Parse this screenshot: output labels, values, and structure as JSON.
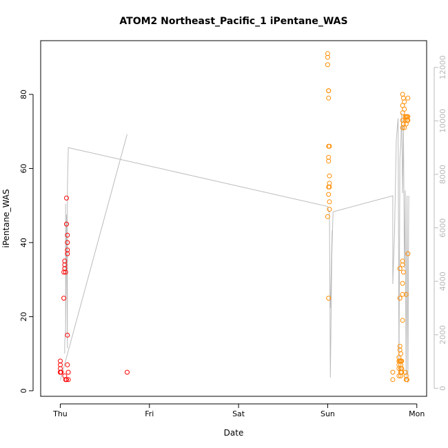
{
  "chart_data": {
    "type": "scatter",
    "title": "ATOM2 Northeast_Pacific_1 iPentane_WAS",
    "xlabel": "Date",
    "ylabel": "iPentane_WAS",
    "x_ticks": [
      {
        "day": 0,
        "label": "Thu"
      },
      {
        "day": 1,
        "label": "Fri"
      },
      {
        "day": 2,
        "label": "Sat"
      },
      {
        "day": 3,
        "label": "Sun"
      },
      {
        "day": 4,
        "label": "Mon"
      }
    ],
    "xlim_days": [
      -0.22,
      4.11
    ],
    "ylim": [
      -1.5,
      94.5
    ],
    "y_ticks": [
      0,
      20,
      40,
      60,
      80
    ],
    "y2lim": [
      -300,
      13000
    ],
    "y2_ticks": [
      0,
      2000,
      4000,
      6000,
      8000,
      10000,
      12000
    ],
    "grid": false,
    "series": [
      {
        "color": "#ff0000",
        "points": [
          [
            0.0,
            8
          ],
          [
            0.0,
            7
          ],
          [
            0.0,
            6
          ],
          [
            0.0,
            5
          ],
          [
            0.0,
            5
          ],
          [
            0.01,
            5
          ],
          [
            0.04,
            25
          ],
          [
            0.04,
            32
          ],
          [
            0.05,
            33
          ],
          [
            0.05,
            34
          ],
          [
            0.05,
            35
          ],
          [
            0.06,
            32
          ],
          [
            0.05,
            4
          ],
          [
            0.06,
            3
          ],
          [
            0.07,
            3
          ],
          [
            0.07,
            52
          ],
          [
            0.07,
            45
          ],
          [
            0.08,
            42
          ],
          [
            0.08,
            40
          ],
          [
            0.08,
            38
          ],
          [
            0.08,
            37
          ],
          [
            0.08,
            15
          ],
          [
            0.08,
            7
          ],
          [
            0.09,
            5
          ],
          [
            0.09,
            3
          ],
          [
            0.75,
            5
          ]
        ]
      },
      {
        "color": "#ff8c00",
        "points": [
          [
            3.0,
            91
          ],
          [
            3.0,
            90
          ],
          [
            3.0,
            88
          ],
          [
            3.01,
            81
          ],
          [
            3.01,
            81
          ],
          [
            3.01,
            79
          ],
          [
            3.01,
            66
          ],
          [
            3.02,
            66
          ],
          [
            3.01,
            63
          ],
          [
            3.01,
            62
          ],
          [
            3.02,
            58
          ],
          [
            3.02,
            56
          ],
          [
            3.01,
            55
          ],
          [
            3.02,
            55
          ],
          [
            3.01,
            53
          ],
          [
            3.02,
            51
          ],
          [
            3.02,
            49
          ],
          [
            3.0,
            47
          ],
          [
            3.01,
            25
          ],
          [
            3.73,
            5
          ],
          [
            3.73,
            3
          ],
          [
            3.81,
            33
          ],
          [
            3.81,
            25
          ],
          [
            3.81,
            12
          ],
          [
            3.81,
            11
          ],
          [
            3.82,
            10
          ],
          [
            3.8,
            9
          ],
          [
            3.8,
            8
          ],
          [
            3.81,
            8
          ],
          [
            3.82,
            8
          ],
          [
            3.83,
            8
          ],
          [
            3.8,
            7
          ],
          [
            3.82,
            7
          ],
          [
            3.8,
            6
          ],
          [
            3.82,
            6
          ],
          [
            3.83,
            6
          ],
          [
            3.82,
            5
          ],
          [
            3.83,
            5
          ],
          [
            3.8,
            4
          ],
          [
            3.82,
            4
          ],
          [
            3.84,
            80
          ],
          [
            3.84,
            77
          ],
          [
            3.84,
            75
          ],
          [
            3.84,
            73
          ],
          [
            3.84,
            71
          ],
          [
            3.85,
            79
          ],
          [
            3.86,
            78
          ],
          [
            3.86,
            76
          ],
          [
            3.85,
            72
          ],
          [
            3.86,
            71
          ],
          [
            3.87,
            74
          ],
          [
            3.88,
            74
          ],
          [
            3.87,
            73
          ],
          [
            3.88,
            72
          ],
          [
            3.89,
            73
          ],
          [
            3.89,
            74
          ],
          [
            3.9,
            79
          ],
          [
            3.9,
            74
          ],
          [
            3.9,
            73
          ],
          [
            3.84,
            35
          ],
          [
            3.84,
            34
          ],
          [
            3.85,
            32
          ],
          [
            3.84,
            29
          ],
          [
            3.84,
            26
          ],
          [
            3.84,
            19
          ],
          [
            3.88,
            26
          ],
          [
            3.9,
            37
          ],
          [
            3.87,
            5
          ],
          [
            3.88,
            4
          ],
          [
            3.88,
            3
          ],
          [
            3.89,
            3
          ]
        ]
      }
    ],
    "altitude_series": {
      "color": "#bbbbbb",
      "points": [
        [
          0.05,
          1300
        ],
        [
          0.05,
          1700
        ],
        [
          0.06,
          2200
        ],
        [
          0.06,
          6900
        ],
        [
          0.06,
          2000
        ],
        [
          0.07,
          6500
        ],
        [
          0.08,
          1500
        ],
        [
          0.08,
          7500
        ],
        [
          0.09,
          9000
        ],
        [
          3.0,
          6800
        ],
        [
          3.01,
          6600
        ],
        [
          3.02,
          6600
        ],
        [
          3.03,
          400
        ],
        [
          3.05,
          5900
        ],
        [
          3.03,
          3000
        ],
        [
          3.06,
          6600
        ],
        [
          3.73,
          7200
        ],
        [
          3.73,
          4100
        ],
        [
          3.73,
          3900
        ],
        [
          3.75,
          5800
        ],
        [
          3.77,
          9300
        ],
        [
          3.79,
          10100
        ],
        [
          3.8,
          500
        ],
        [
          3.81,
          8600
        ],
        [
          3.82,
          9100
        ],
        [
          3.83,
          10300
        ],
        [
          3.84,
          7300
        ],
        [
          3.85,
          9800
        ],
        [
          3.86,
          4500
        ],
        [
          3.87,
          7400
        ],
        [
          3.87,
          6000
        ],
        [
          3.88,
          300
        ],
        [
          3.89,
          7200
        ],
        [
          3.9,
          200
        ],
        [
          3.91,
          7200
        ]
      ],
      "segments": [
        [
          [
            0.0,
            300
          ],
          [
            0.75,
            9500
          ]
        ]
      ]
    }
  }
}
